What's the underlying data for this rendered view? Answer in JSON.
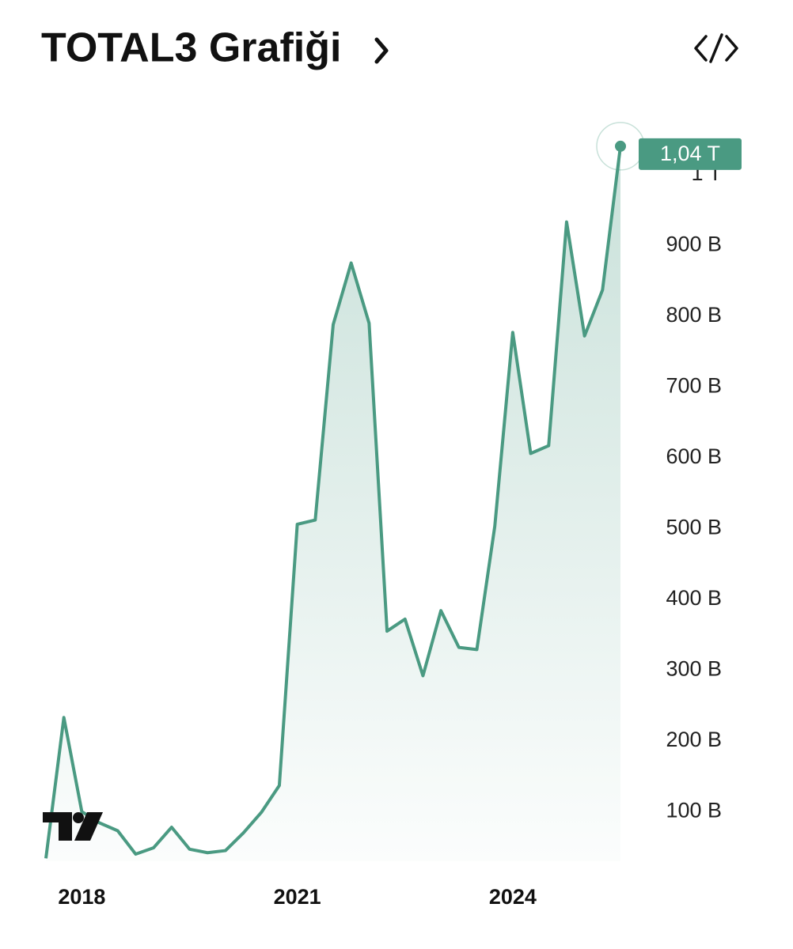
{
  "chart_data": {
    "type": "line",
    "title": "TOTAL3 Grafiği",
    "x": [
      2017.5,
      2017.75,
      2018,
      2018.25,
      2018.5,
      2018.75,
      2019,
      2019.25,
      2019.5,
      2019.75,
      2020,
      2020.25,
      2020.5,
      2020.75,
      2021,
      2021.25,
      2021.5,
      2021.75,
      2022,
      2022.25,
      2022.5,
      2022.75,
      2023,
      2023.25,
      2023.5,
      2023.75,
      2024,
      2024.25,
      2024.5,
      2024.75,
      2025,
      2025.25,
      2025.5
    ],
    "values": [
      34,
      233,
      100,
      84,
      73,
      40,
      49,
      78,
      47,
      42,
      45,
      70,
      99,
      137,
      506,
      512,
      788,
      875,
      790,
      355,
      372,
      292,
      384,
      332,
      329,
      503,
      777,
      606,
      617,
      933,
      772,
      837,
      1040
    ],
    "value_labels": [
      null,
      null,
      null,
      null,
      null,
      null,
      null,
      null,
      null,
      null,
      null,
      null,
      null,
      null,
      null,
      null,
      null,
      null,
      null,
      null,
      null,
      null,
      null,
      null,
      null,
      null,
      null,
      null,
      null,
      null,
      null,
      null,
      "1,04 T"
    ],
    "color": "#4a9a82",
    "xlim": [
      2017.5,
      2025.5
    ],
    "xticks": [
      2018,
      2021,
      2024
    ],
    "ylim": [
      30,
      1060
    ],
    "yticks": [
      {
        "value": 100,
        "label": "100 B"
      },
      {
        "value": 200,
        "label": "200 B"
      },
      {
        "value": 300,
        "label": "300 B"
      },
      {
        "value": 400,
        "label": "400 B"
      },
      {
        "value": 500,
        "label": "500 B"
      },
      {
        "value": 600,
        "label": "600 B"
      },
      {
        "value": 700,
        "label": "700 B"
      },
      {
        "value": 800,
        "label": "800 B"
      },
      {
        "value": 900,
        "label": "900 B"
      },
      {
        "value": 1000,
        "label": "1 T"
      }
    ]
  }
}
